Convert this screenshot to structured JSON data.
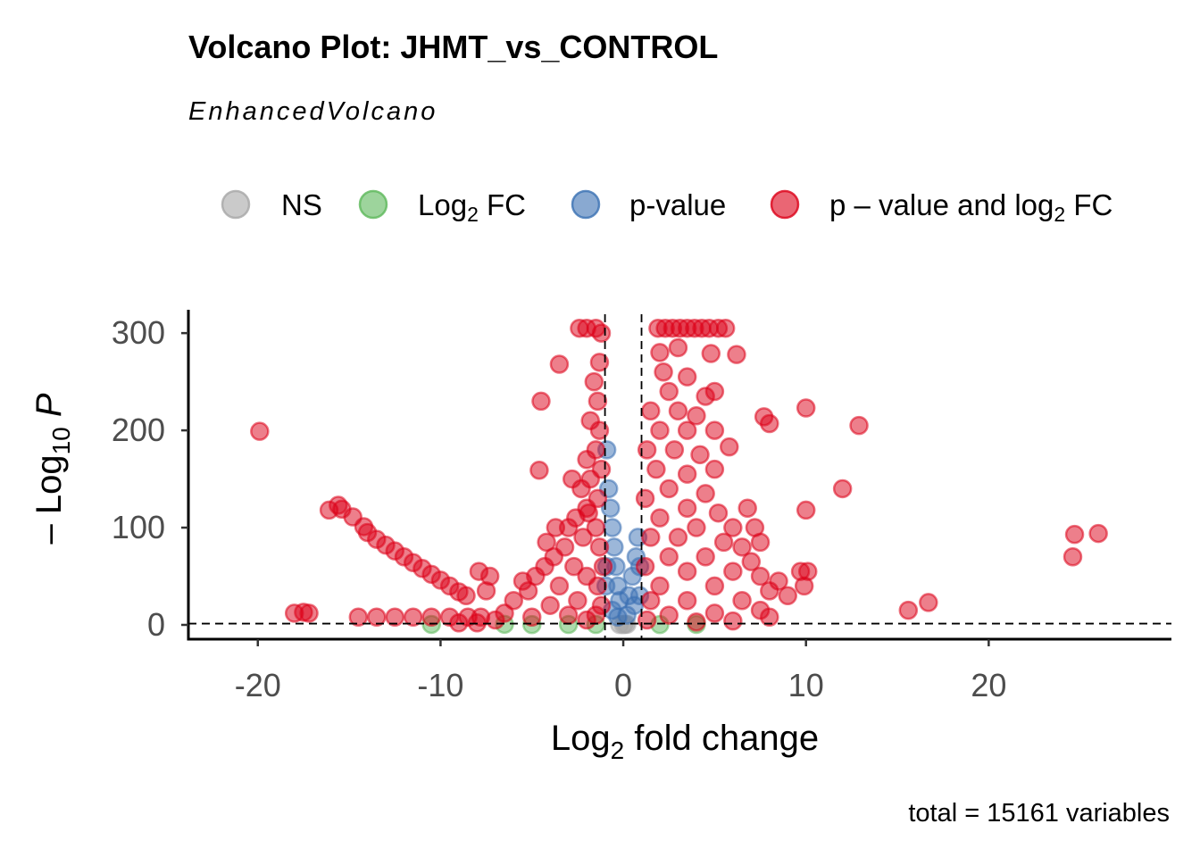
{
  "chart_data": {
    "type": "scatter",
    "title": "Volcano Plot: JHMT_vs_CONTROL",
    "subtitle": "EnhancedVolcano",
    "caption": "total = 15161 variables",
    "xlabel": {
      "base": "Log",
      "sub": "2",
      "rest": " fold change"
    },
    "ylabel": {
      "prefix": "– Log",
      "sub": "10",
      "rest": " P"
    },
    "xlim": [
      -23.8,
      30
    ],
    "ylim": [
      -14.7,
      324
    ],
    "xticks": [
      -20,
      -10,
      0,
      10,
      20
    ],
    "yticks": [
      0,
      100,
      200,
      300
    ],
    "grid": false,
    "legend_position": "top",
    "thresholds": {
      "log2fc": [
        -1,
        1
      ],
      "neg_log10_p": 1.3
    },
    "legend": [
      {
        "key": "NS",
        "label": {
          "base": "NS",
          "sub": "",
          "rest": ""
        },
        "color": "#a6a6a6"
      },
      {
        "key": "FC",
        "label": {
          "base": "Log",
          "sub": "2",
          "rest": " FC"
        },
        "color": "#5cb85a"
      },
      {
        "key": "P",
        "label": {
          "base": "p-value",
          "sub": "",
          "rest": ""
        },
        "color": "#3a70b3"
      },
      {
        "key": "FC_P",
        "label": {
          "base": "p – value and log",
          "sub": "2",
          "rest": " FC"
        },
        "color": "#dc0018"
      }
    ],
    "series": {
      "NS": [
        [
          0,
          0.2
        ],
        [
          0.2,
          0.5
        ],
        [
          -0.2,
          0.3
        ],
        [
          0.1,
          0.8
        ]
      ],
      "FC": [
        [
          -10.5,
          0.5
        ],
        [
          -6.5,
          0.6
        ],
        [
          -5,
          0.3
        ],
        [
          -3,
          0.4
        ],
        [
          2,
          0.3
        ],
        [
          4,
          0.5
        ],
        [
          -1.5,
          0.4
        ]
      ],
      "P": [
        [
          -0.9,
          180
        ],
        [
          -0.8,
          140
        ],
        [
          -0.7,
          120
        ],
        [
          -0.6,
          100
        ],
        [
          -0.5,
          80
        ],
        [
          -0.4,
          60
        ],
        [
          -0.3,
          40
        ],
        [
          -0.2,
          25
        ],
        [
          0.3,
          30
        ],
        [
          0.5,
          50
        ],
        [
          0.7,
          70
        ],
        [
          0.8,
          90
        ],
        [
          0.9,
          60
        ],
        [
          -0.9,
          60
        ],
        [
          0.6,
          20
        ],
        [
          -0.6,
          15
        ],
        [
          0.2,
          10
        ],
        [
          -0.3,
          8
        ],
        [
          0.9,
          30
        ],
        [
          -0.95,
          40
        ]
      ],
      "FC_P": [
        [
          -1.2,
          300
        ],
        [
          -1.5,
          305
        ],
        [
          -2,
          305
        ],
        [
          -2.4,
          305
        ],
        [
          -1.3,
          270
        ],
        [
          -1.6,
          250
        ],
        [
          -1.4,
          230
        ],
        [
          -1.8,
          210
        ],
        [
          -1.3,
          200
        ],
        [
          -1.5,
          180
        ],
        [
          -2,
          170
        ],
        [
          -1.2,
          160
        ],
        [
          -1.8,
          150
        ],
        [
          -2.3,
          140
        ],
        [
          -1.4,
          130
        ],
        [
          -2,
          120
        ],
        [
          -2.6,
          110
        ],
        [
          -3,
          100
        ],
        [
          -1.5,
          100
        ],
        [
          -2.2,
          90
        ],
        [
          -3.2,
          80
        ],
        [
          -3.8,
          70
        ],
        [
          -1.3,
          80
        ],
        [
          -2.7,
          60
        ],
        [
          -4.3,
          60
        ],
        [
          -4.8,
          50
        ],
        [
          -2,
          50
        ],
        [
          -3.5,
          40
        ],
        [
          -5.2,
          35
        ],
        [
          -6,
          25
        ],
        [
          -2.5,
          25
        ],
        [
          -4,
          20
        ],
        [
          -6.5,
          12
        ],
        [
          -3,
          10
        ],
        [
          -5,
          8
        ],
        [
          -1.5,
          10
        ],
        [
          -2,
          5
        ],
        [
          -7,
          5
        ],
        [
          -3.5,
          268
        ],
        [
          -4.5,
          230
        ],
        [
          -4.6,
          159
        ],
        [
          -2.8,
          150
        ],
        [
          -1.9,
          115
        ],
        [
          -1.1,
          60
        ],
        [
          -1.4,
          40
        ],
        [
          -1.2,
          20
        ],
        [
          -3.7,
          100
        ],
        [
          -5.5,
          45
        ],
        [
          -4.2,
          85
        ],
        [
          -14,
          95
        ],
        [
          -13.5,
          88
        ],
        [
          -13,
          82
        ],
        [
          -12.5,
          76
        ],
        [
          -12,
          70
        ],
        [
          -11.5,
          64
        ],
        [
          -11,
          58
        ],
        [
          -10.5,
          52
        ],
        [
          -10,
          46
        ],
        [
          -9.5,
          40
        ],
        [
          -9,
          34
        ],
        [
          -8.6,
          30
        ],
        [
          -16.1,
          118
        ],
        [
          -15.6,
          123
        ],
        [
          -15.4,
          119
        ],
        [
          -14.8,
          111
        ],
        [
          -14.2,
          101
        ],
        [
          -19.9,
          199
        ],
        [
          -18,
          12
        ],
        [
          -17.5,
          13
        ],
        [
          -17.2,
          12
        ],
        [
          -14.5,
          8
        ],
        [
          -13.5,
          8
        ],
        [
          -12.5,
          8
        ],
        [
          -11.5,
          8
        ],
        [
          -10.5,
          8
        ],
        [
          -9.5,
          8
        ],
        [
          -8.5,
          8
        ],
        [
          -7.8,
          8
        ],
        [
          -8,
          2
        ],
        [
          -9,
          2
        ],
        [
          -7.9,
          55
        ],
        [
          -7.3,
          50
        ],
        [
          -7.5,
          35
        ],
        [
          1.9,
          305
        ],
        [
          2.3,
          305
        ],
        [
          2.7,
          305
        ],
        [
          3.1,
          305
        ],
        [
          3.5,
          305
        ],
        [
          3.9,
          305
        ],
        [
          4.3,
          305
        ],
        [
          4.7,
          305
        ],
        [
          5.2,
          305
        ],
        [
          5.6,
          305
        ],
        [
          4.8,
          279
        ],
        [
          6.2,
          278
        ],
        [
          2,
          280
        ],
        [
          3,
          285
        ],
        [
          2.2,
          260
        ],
        [
          3.5,
          255
        ],
        [
          2.5,
          240
        ],
        [
          4.5,
          235
        ],
        [
          5,
          240
        ],
        [
          1.5,
          220
        ],
        [
          3,
          220
        ],
        [
          4,
          215
        ],
        [
          2,
          200
        ],
        [
          3.5,
          200
        ],
        [
          5,
          200
        ],
        [
          5.8,
          183
        ],
        [
          1.3,
          180
        ],
        [
          2.8,
          180
        ],
        [
          4.2,
          175
        ],
        [
          1.8,
          160
        ],
        [
          3.5,
          155
        ],
        [
          5,
          160
        ],
        [
          2.5,
          140
        ],
        [
          4.5,
          135
        ],
        [
          1.2,
          130
        ],
        [
          3.5,
          120
        ],
        [
          5.2,
          115
        ],
        [
          2,
          110
        ],
        [
          4,
          100
        ],
        [
          6,
          100
        ],
        [
          1.5,
          90
        ],
        [
          3,
          90
        ],
        [
          5.5,
          85
        ],
        [
          6.5,
          80
        ],
        [
          2.5,
          70
        ],
        [
          4.5,
          70
        ],
        [
          7,
          65
        ],
        [
          1.2,
          60
        ],
        [
          3.5,
          55
        ],
        [
          6,
          55
        ],
        [
          7.5,
          50
        ],
        [
          8.5,
          45
        ],
        [
          2,
          40
        ],
        [
          5,
          40
        ],
        [
          8,
          35
        ],
        [
          1.5,
          25
        ],
        [
          3.5,
          25
        ],
        [
          6.5,
          25
        ],
        [
          9,
          30
        ],
        [
          2.5,
          10
        ],
        [
          5,
          12
        ],
        [
          7.5,
          15
        ],
        [
          1.3,
          5
        ],
        [
          4,
          3
        ],
        [
          6,
          4
        ],
        [
          8,
          8
        ],
        [
          7.7,
          214
        ],
        [
          8,
          207
        ],
        [
          10,
          223
        ],
        [
          12.9,
          205
        ],
        [
          12,
          140
        ],
        [
          10,
          118
        ],
        [
          24.7,
          93
        ],
        [
          26,
          94
        ],
        [
          24.6,
          70
        ],
        [
          16.7,
          23
        ],
        [
          15.6,
          15
        ],
        [
          10.1,
          55
        ],
        [
          9.9,
          40
        ],
        [
          9.7,
          55
        ],
        [
          7.2,
          100
        ],
        [
          7.5,
          85
        ],
        [
          6.8,
          120
        ]
      ]
    }
  }
}
